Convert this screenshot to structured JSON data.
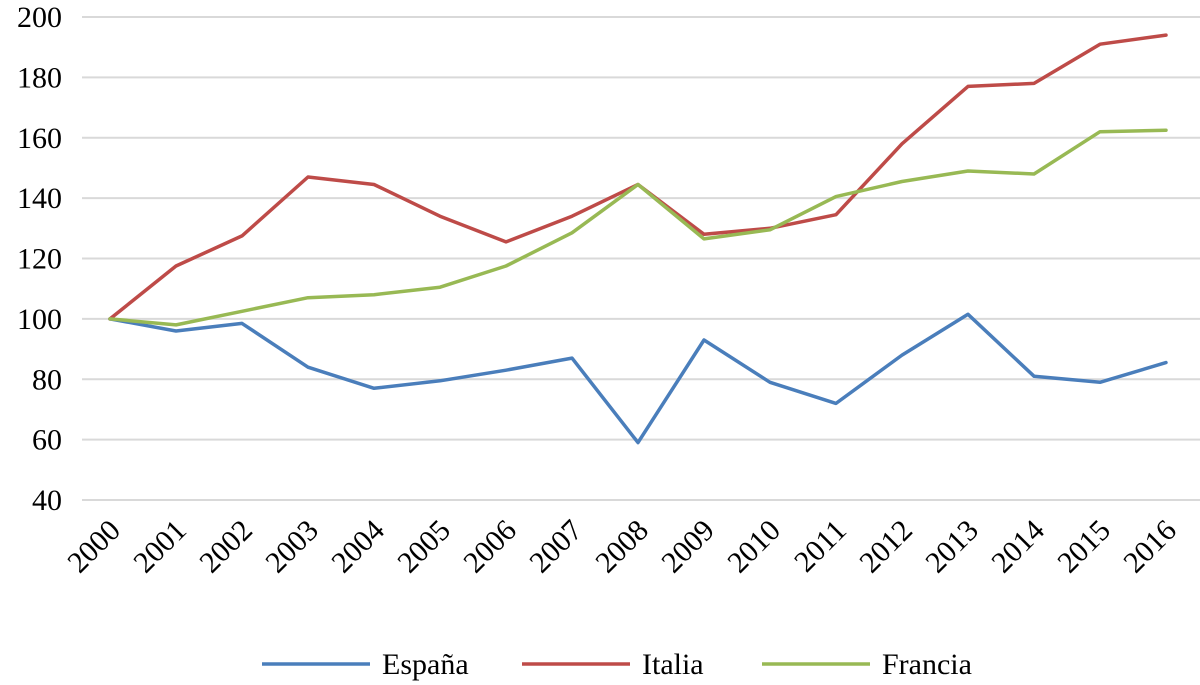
{
  "chart_data": {
    "type": "line",
    "title": "",
    "xlabel": "",
    "ylabel": "",
    "x": [
      "2000",
      "2001",
      "2002",
      "2003",
      "2004",
      "2005",
      "2006",
      "2007",
      "2008",
      "2009",
      "2010",
      "2011",
      "2012",
      "2013",
      "2014",
      "2015",
      "2016"
    ],
    "y_ticks": [
      "40",
      "60",
      "80",
      "100",
      "120",
      "140",
      "160",
      "180",
      "200"
    ],
    "ylim": [
      40,
      200
    ],
    "grid": true,
    "legend_position": "bottom",
    "series": [
      {
        "name": "España",
        "color": "#4a7ebb",
        "values": [
          100,
          96,
          98.5,
          84,
          77,
          79.5,
          83,
          87,
          59,
          93,
          79,
          72,
          88,
          101.5,
          81,
          79,
          85.5
        ]
      },
      {
        "name": "Italia",
        "color": "#be4b48",
        "values": [
          100,
          117.5,
          127.5,
          147,
          144.5,
          134,
          125.5,
          134,
          144.5,
          128,
          130,
          134.5,
          158,
          177,
          178,
          191,
          194
        ]
      },
      {
        "name": "Francia",
        "color": "#98b954",
        "values": [
          100,
          98,
          102.5,
          107,
          108,
          110.5,
          117.5,
          128.5,
          144.5,
          126.5,
          129.5,
          140.5,
          145.5,
          149,
          148,
          162,
          162.5
        ]
      }
    ]
  }
}
